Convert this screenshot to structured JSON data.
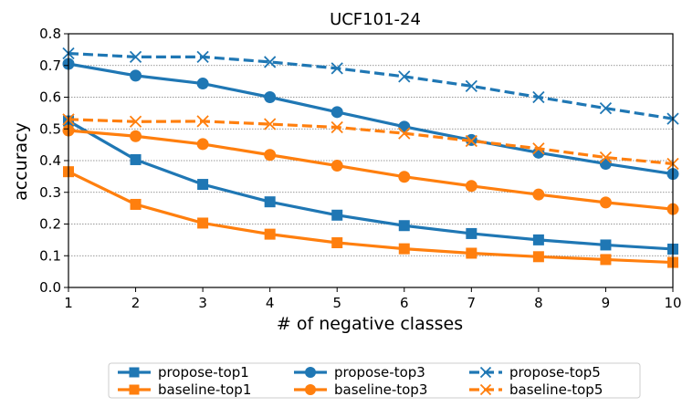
{
  "chart_data": {
    "type": "line",
    "title": "UCF101-24",
    "xlabel": "# of negative classes",
    "ylabel": "accuracy",
    "x": [
      1,
      2,
      3,
      4,
      5,
      6,
      7,
      8,
      9,
      10
    ],
    "xlim": [
      1,
      10
    ],
    "ylim": [
      0.0,
      0.8
    ],
    "xticks": [
      "1",
      "2",
      "3",
      "4",
      "5",
      "6",
      "7",
      "8",
      "9",
      "10"
    ],
    "yticks": [
      "0.0",
      "0.1",
      "0.2",
      "0.3",
      "0.4",
      "0.5",
      "0.6",
      "0.7",
      "0.8"
    ],
    "grid": "horizontal dotted",
    "legend_position": "bottom, below axes, 3 columns",
    "series": [
      {
        "name": "propose-top1",
        "color": "#1f77b4",
        "marker": "square",
        "linestyle": "solid",
        "values": [
          0.525,
          0.403,
          0.325,
          0.27,
          0.228,
          0.195,
          0.17,
          0.15,
          0.134,
          0.121
        ]
      },
      {
        "name": "baseline-top1",
        "color": "#ff7f0e",
        "marker": "square",
        "linestyle": "solid",
        "values": [
          0.365,
          0.262,
          0.203,
          0.168,
          0.141,
          0.122,
          0.108,
          0.097,
          0.088,
          0.079
        ]
      },
      {
        "name": "propose-top3",
        "color": "#1f77b4",
        "marker": "circle",
        "linestyle": "solid",
        "values": [
          0.705,
          0.668,
          0.643,
          0.6,
          0.553,
          0.507,
          0.465,
          0.425,
          0.39,
          0.358
        ]
      },
      {
        "name": "baseline-top3",
        "color": "#ff7f0e",
        "marker": "circle",
        "linestyle": "solid",
        "values": [
          0.495,
          0.477,
          0.452,
          0.418,
          0.384,
          0.349,
          0.32,
          0.293,
          0.268,
          0.247
        ]
      },
      {
        "name": "propose-top5",
        "color": "#1f77b4",
        "marker": "x",
        "linestyle": "dashed",
        "values": [
          0.738,
          0.727,
          0.727,
          0.711,
          0.691,
          0.665,
          0.635,
          0.6,
          0.565,
          0.532
        ]
      },
      {
        "name": "baseline-top5",
        "color": "#ff7f0e",
        "marker": "x",
        "linestyle": "dashed",
        "values": [
          0.53,
          0.523,
          0.524,
          0.515,
          0.505,
          0.486,
          0.462,
          0.438,
          0.41,
          0.39
        ]
      }
    ]
  }
}
